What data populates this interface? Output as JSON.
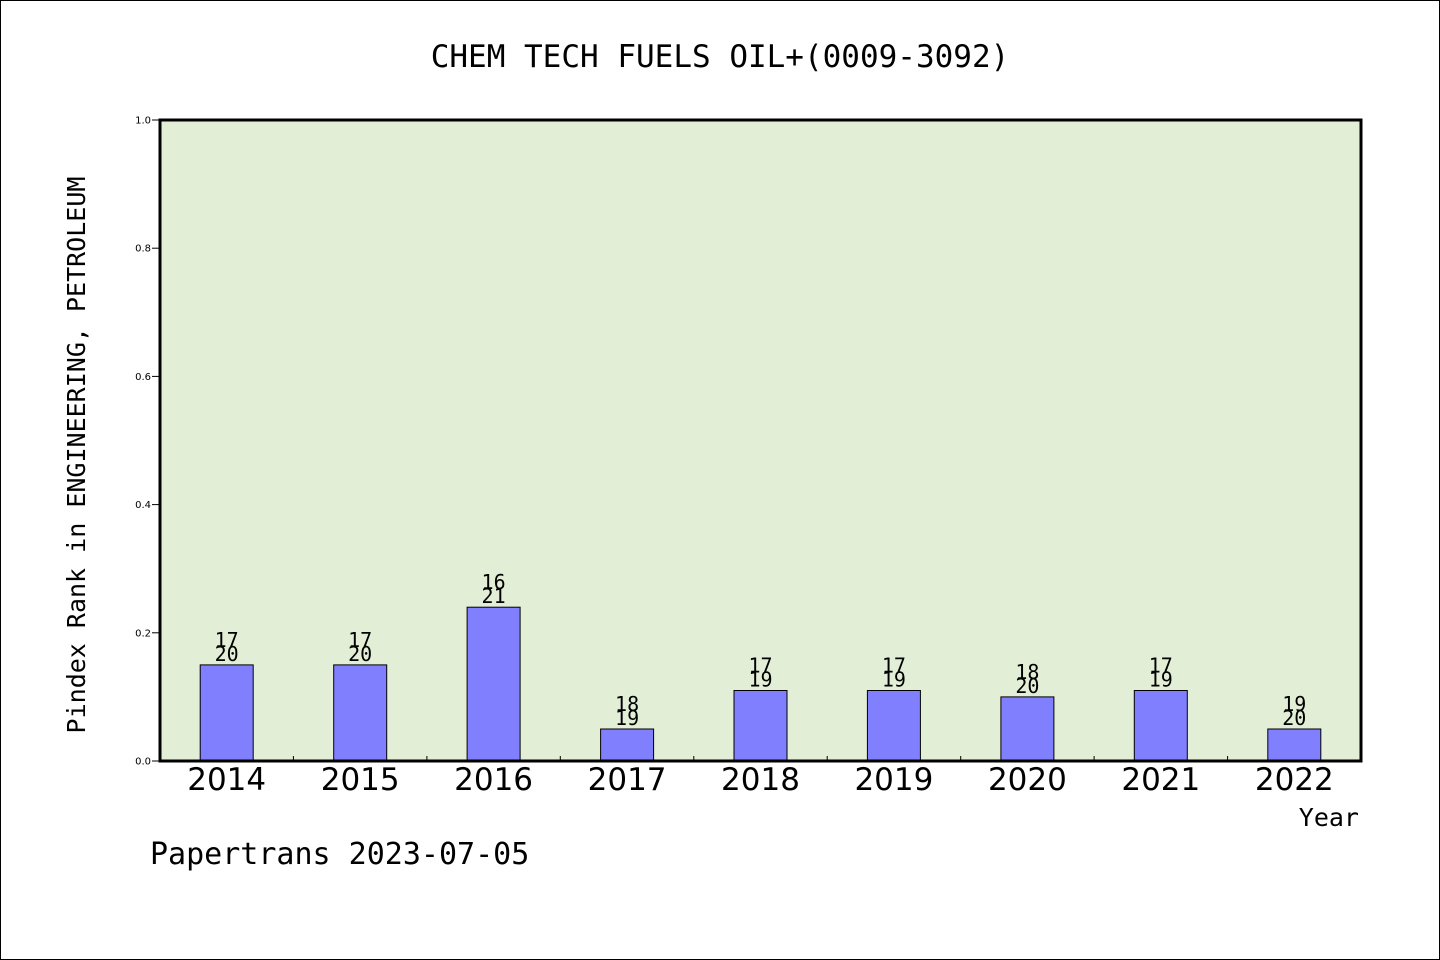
{
  "chart_data": {
    "type": "bar",
    "title": "CHEM TECH FUELS OIL+(0009-3092)",
    "ylabel": "Pindex Rank in ENGINEERING, PETROLEUM",
    "xlabel": "Year",
    "footer": "Papertrans 2023-07-05",
    "ylim": [
      0,
      1.0
    ],
    "yticks": [
      "0.0",
      "0.2",
      "0.4",
      "0.6",
      "0.8",
      "1.0"
    ],
    "categories": [
      "2014",
      "2015",
      "2016",
      "2017",
      "2018",
      "2019",
      "2020",
      "2021",
      "2022"
    ],
    "values": [
      0.15,
      0.15,
      0.24,
      0.05,
      0.11,
      0.11,
      0.1,
      0.11,
      0.05
    ],
    "labels_top": [
      "17",
      "17",
      "16",
      "18",
      "17",
      "17",
      "18",
      "17",
      "19"
    ],
    "labels_bottom": [
      "20",
      "20",
      "21",
      "19",
      "19",
      "19",
      "20",
      "19",
      "20"
    ],
    "grid": false,
    "colors": {
      "plot_background": "#e2efd6",
      "bar_fill": "#8080ff",
      "axis": "#000000"
    }
  }
}
